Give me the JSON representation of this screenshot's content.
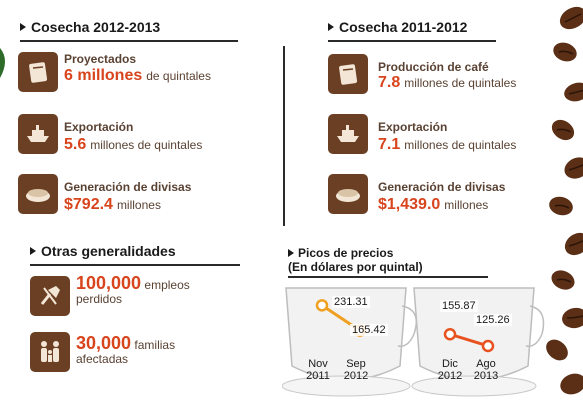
{
  "left": {
    "title": "Cosecha 2012-2013",
    "rows": [
      {
        "label": "Proyectados",
        "value": "6 millones",
        "unit": "de quintales",
        "icon": "sack-icon"
      },
      {
        "label": "Exportación",
        "value": "5.6",
        "unit": "millones de quintales",
        "icon": "ship-icon"
      },
      {
        "label": "Generación de divisas",
        "value": "$792.4",
        "unit": "millones",
        "icon": "money-icon"
      }
    ]
  },
  "right": {
    "title": "Cosecha 2011-2012",
    "rows": [
      {
        "label": "Producción de café",
        "value": "7.8",
        "unit": "millones de quintales",
        "icon": "sack-icon"
      },
      {
        "label": "Exportación",
        "value": "7.1",
        "unit": "millones de quintales",
        "icon": "ship-icon"
      },
      {
        "label": "Generación de divisas",
        "value": "$1,439.0",
        "unit": "millones",
        "icon": "money-icon"
      }
    ]
  },
  "general": {
    "title": "Otras generalidades",
    "items": [
      {
        "number": "100,000",
        "text1": "empleos",
        "text2": "perdidos",
        "icon": "shovel-icon"
      },
      {
        "number": "30,000",
        "text1": "familias",
        "text2": "afectadas",
        "icon": "family-icon"
      }
    ]
  },
  "prices": {
    "title": "Picos de precios",
    "subtitle": "(En dólares por quintal)"
  },
  "chart_data": [
    {
      "type": "line",
      "categories": [
        "Nov 2011",
        "Sep 2012"
      ],
      "x_lines": [
        [
          "Nov",
          "2011"
        ],
        [
          "Sep",
          "2012"
        ]
      ],
      "values": [
        231.31,
        165.42
      ],
      "value_labels": [
        "231.31",
        "165.42"
      ],
      "color": "#f0a020"
    },
    {
      "type": "line",
      "categories": [
        "Dic 2012",
        "Ago 2013"
      ],
      "x_lines": [
        [
          "Dic",
          "2012"
        ],
        [
          "Ago",
          "2013"
        ]
      ],
      "values": [
        155.87,
        125.26
      ],
      "value_labels": [
        "155.87",
        "125.26"
      ],
      "color": "#e8521e"
    }
  ],
  "colors": {
    "accent": "#d8441c",
    "icon_bg": "#6b3f24",
    "text": "#5a4233"
  }
}
